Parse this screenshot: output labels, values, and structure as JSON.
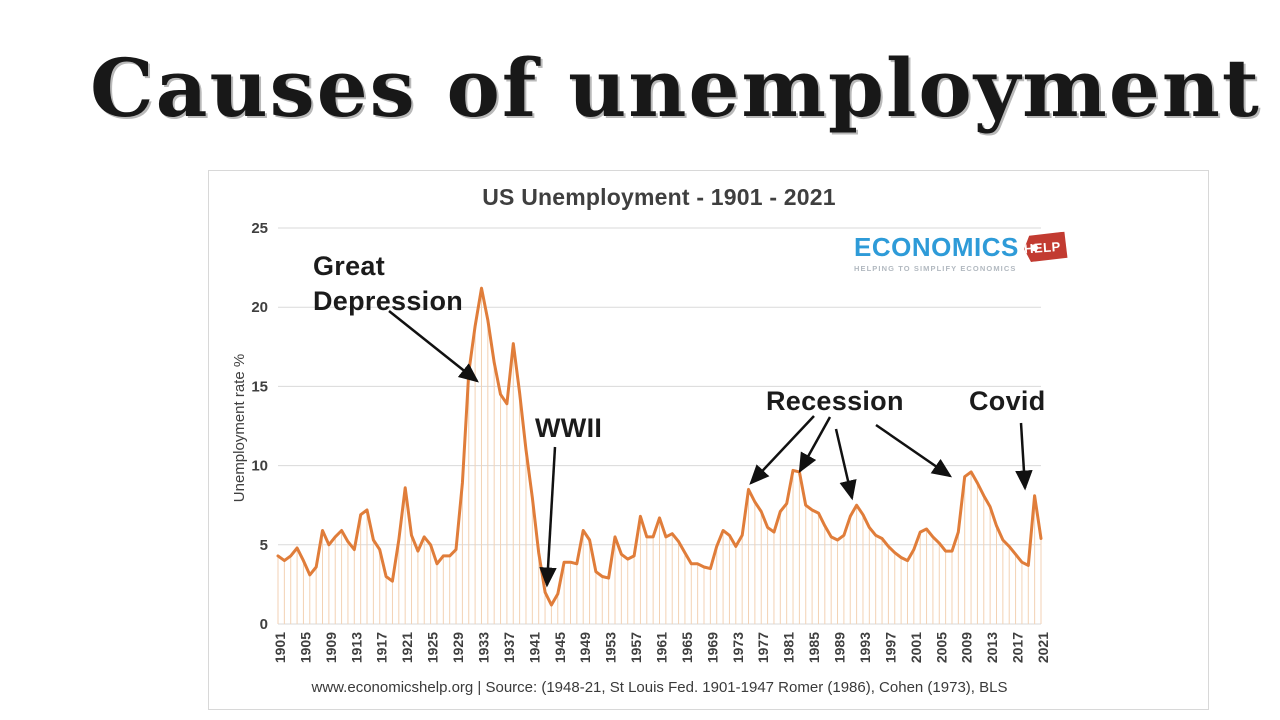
{
  "page": {
    "heading": "Causes of unemployment"
  },
  "chart": {
    "title": "US Unemployment - 1901 - 2021",
    "footer": "www.economicshelp.org  | Source: (1948-21, St Louis Fed. 1901-1947 Romer (1986), Cohen (1973), BLS"
  },
  "logo": {
    "brand": "ECONOMICS",
    "tag": "HELP",
    "tagline": "HELPING TO SIMPLIFY ECONOMICS"
  },
  "colors": {
    "line": "#e07d3a",
    "drop_lines": "#f3d2b4",
    "gridline": "#dadada",
    "axis_text": "#3f3f3f",
    "annotation_text": "#1b1b1b",
    "arrow": "#111111",
    "logo_blue": "#2e9bd8",
    "logo_red": "#c23b31"
  },
  "chart_data": {
    "type": "line",
    "title": "US Unemployment - 1901 - 2021",
    "xlabel": "",
    "ylabel": "Unemployment rate %",
    "ylim": [
      0,
      25
    ],
    "y_ticks": [
      0,
      5,
      10,
      15,
      20,
      25
    ],
    "x_start_year": 1901,
    "x_end_year": 2021,
    "x_ticks": [
      1901,
      1905,
      1909,
      1913,
      1917,
      1921,
      1925,
      1929,
      1933,
      1937,
      1941,
      1945,
      1949,
      1953,
      1957,
      1961,
      1965,
      1969,
      1973,
      1977,
      1981,
      1985,
      1989,
      1993,
      1997,
      2001,
      2005,
      2009,
      2013,
      2017,
      2021
    ],
    "grid": "horizontal",
    "legend": "none",
    "series": [
      {
        "name": "US unemployment rate %",
        "values": [
          4.3,
          4.0,
          4.3,
          4.8,
          4.0,
          3.1,
          3.6,
          5.9,
          5.0,
          5.5,
          5.9,
          5.2,
          4.7,
          6.9,
          7.2,
          5.3,
          4.7,
          3.0,
          2.7,
          5.3,
          8.6,
          5.6,
          4.6,
          5.5,
          5.0,
          3.8,
          4.3,
          4.3,
          4.7,
          8.9,
          15.9,
          18.8,
          21.2,
          19.2,
          16.5,
          14.5,
          13.9,
          17.7,
          14.6,
          11.0,
          8.0,
          4.5,
          2.0,
          1.2,
          1.9,
          3.9,
          3.9,
          3.8,
          5.9,
          5.3,
          3.3,
          3.0,
          2.9,
          5.5,
          4.4,
          4.1,
          4.3,
          6.8,
          5.5,
          5.5,
          6.7,
          5.5,
          5.7,
          5.2,
          4.5,
          3.8,
          3.8,
          3.6,
          3.5,
          4.9,
          5.9,
          5.6,
          4.9,
          5.6,
          8.5,
          7.7,
          7.1,
          6.1,
          5.8,
          7.1,
          7.6,
          9.7,
          9.6,
          7.5,
          7.2,
          7.0,
          6.2,
          5.5,
          5.3,
          5.6,
          6.8,
          7.5,
          6.9,
          6.1,
          5.6,
          5.4,
          4.9,
          4.5,
          4.2,
          4.0,
          4.7,
          5.8,
          6.0,
          5.5,
          5.1,
          4.6,
          4.6,
          5.8,
          9.3,
          9.6,
          8.9,
          8.1,
          7.4,
          6.2,
          5.3,
          4.9,
          4.4,
          3.9,
          3.7,
          8.1,
          5.4
        ]
      }
    ],
    "annotations": [
      {
        "id": "great-depression",
        "label": "Great Depression",
        "target_years": [
          1932
        ]
      },
      {
        "id": "wwii",
        "label": "WWII",
        "target_years": [
          1944
        ]
      },
      {
        "id": "recession",
        "label": "Recession",
        "target_years": [
          1975,
          1982,
          1992,
          2009
        ]
      },
      {
        "id": "covid",
        "label": "Covid",
        "target_years": [
          2020
        ]
      }
    ]
  }
}
